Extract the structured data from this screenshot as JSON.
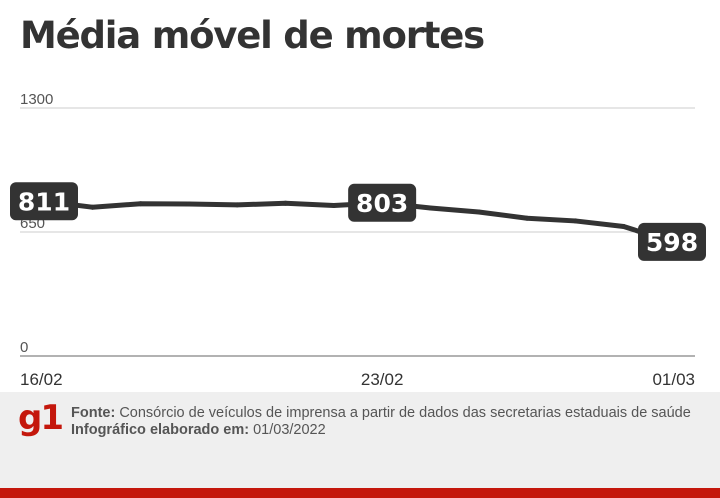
{
  "title": "Média móvel de mortes",
  "colors": {
    "line": "#333333",
    "grid": "#cccccc",
    "label_bg": "#333333",
    "brand": "#c4170c"
  },
  "chart_data": {
    "type": "line",
    "title": "Média móvel de mortes",
    "x": [
      "16/02",
      "17/02",
      "18/02",
      "19/02",
      "20/02",
      "21/02",
      "22/02",
      "23/02",
      "24/02",
      "25/02",
      "26/02",
      "27/02",
      "28/02",
      "01/03"
    ],
    "values": [
      811,
      780,
      798,
      797,
      792,
      801,
      789,
      803,
      776,
      755,
      722,
      708,
      679,
      598
    ],
    "xticks": [
      "16/02",
      "23/02",
      "01/03"
    ],
    "yticks": [
      "1300",
      "650",
      "0"
    ],
    "ylim": [
      0,
      1300
    ],
    "grid": true,
    "point_labels": [
      {
        "index": 0,
        "text": "811"
      },
      {
        "index": 7,
        "text": "803"
      },
      {
        "index": 13,
        "text": "598"
      }
    ]
  },
  "footer": {
    "logo": "g1",
    "source_label": "Fonte:",
    "source_text": "Consórcio de veículos de imprensa a partir de dados das secretarias estaduais de saúde",
    "date_label": "Infográfico elaborado em:",
    "date_text": "01/03/2022"
  }
}
